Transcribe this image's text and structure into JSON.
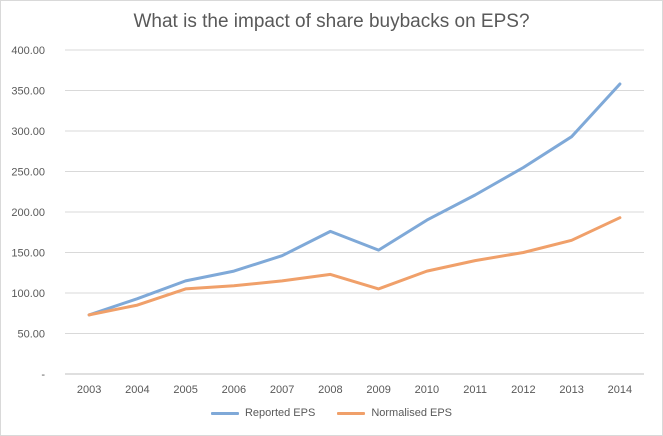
{
  "chart_data": {
    "type": "line",
    "title": "What is the impact of share buybacks on EPS?",
    "xlabel": "",
    "ylabel": "",
    "categories": [
      "2003",
      "2004",
      "2005",
      "2006",
      "2007",
      "2008",
      "2009",
      "2010",
      "2011",
      "2012",
      "2013",
      "2014"
    ],
    "series": [
      {
        "name": "Reported EPS",
        "color": "#7fa9d8",
        "values": [
          73,
          93,
          115,
          127,
          146,
          176,
          153,
          190,
          221,
          255,
          293,
          358
        ]
      },
      {
        "name": "Normalised EPS",
        "color": "#f0a06a",
        "values": [
          73,
          85,
          105,
          109,
          115,
          123,
          105,
          127,
          140,
          150,
          165,
          193
        ]
      }
    ],
    "ylim": [
      0,
      400
    ],
    "yticks": [
      0,
      50,
      100,
      150,
      200,
      250,
      300,
      350,
      400
    ],
    "ytick_labels": [
      "-",
      "50.00",
      "100.00",
      "150.00",
      "200.00",
      "250.00",
      "300.00",
      "350.00",
      "400.00"
    ],
    "grid": true,
    "legend_position": "bottom"
  }
}
